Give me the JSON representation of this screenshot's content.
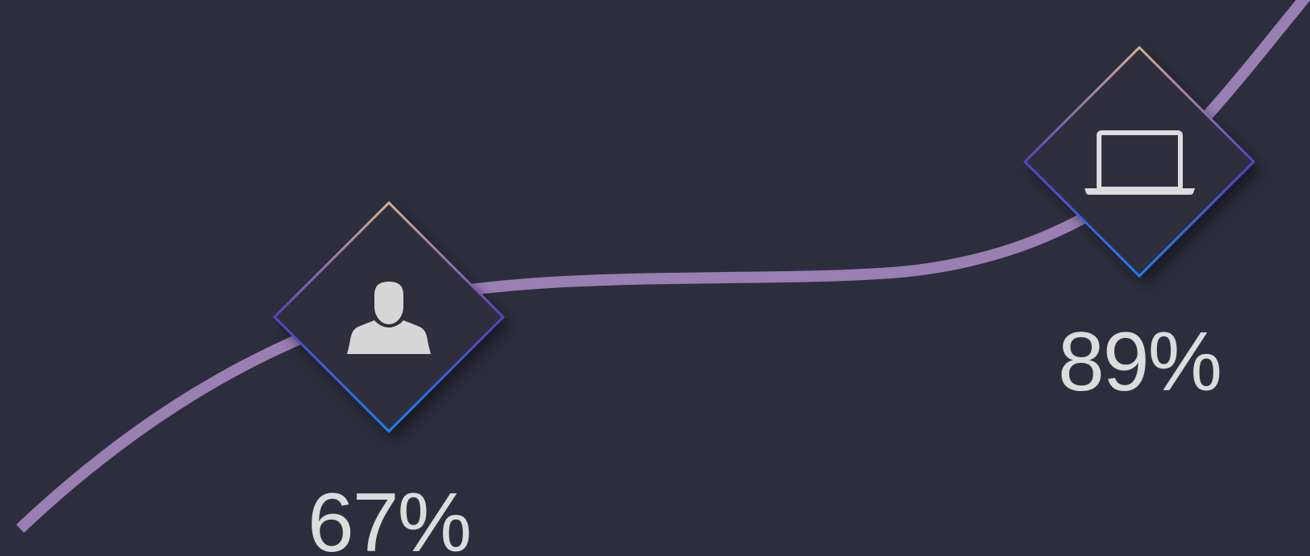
{
  "items": [
    {
      "label": "67%"
    },
    {
      "label": "89%"
    }
  ]
}
